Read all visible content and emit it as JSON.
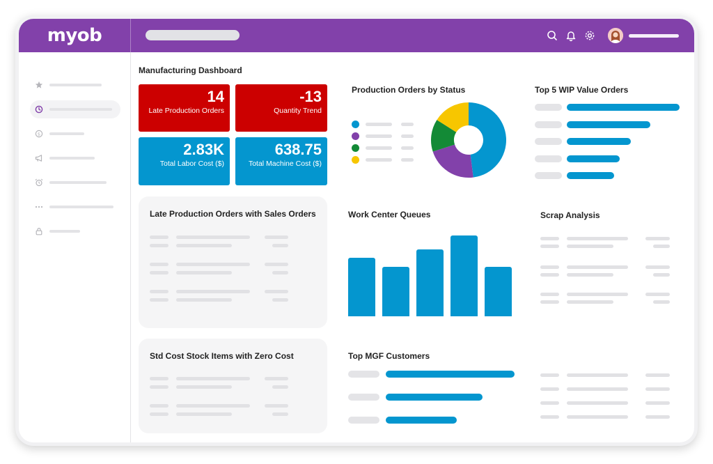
{
  "app": {
    "logo_text": "myob"
  },
  "topbar": {
    "icons": [
      "search-icon",
      "bell-icon",
      "gear-icon"
    ],
    "user": {
      "avatar": "user-avatar"
    }
  },
  "sidebar": {
    "items": [
      {
        "icon": "star-icon",
        "active": false
      },
      {
        "icon": "clock-icon",
        "active": true
      },
      {
        "icon": "dollar-icon",
        "active": false
      },
      {
        "icon": "megaphone-icon",
        "active": false
      },
      {
        "icon": "alarm-icon",
        "active": false
      },
      {
        "icon": "more-icon",
        "active": false
      },
      {
        "icon": "lock-icon",
        "active": false
      }
    ]
  },
  "dashboard": {
    "title": "Manufacturing Dashboard",
    "kpis": [
      {
        "value": "14",
        "label": "Late Production Orders",
        "color": "#cc0000"
      },
      {
        "value": "-13",
        "label": "Quantity Trend",
        "color": "#cc0000"
      },
      {
        "value": "2.83K",
        "label": "Total Labor Cost ($)",
        "color": "#0496cf"
      },
      {
        "value": "638.75",
        "label": "Total Machine Cost ($)",
        "color": "#0496cf"
      }
    ],
    "cards": {
      "orders_by_status": "Production Orders by Status",
      "top_wip": "Top 5 WIP Value Orders",
      "late_with_sales": "Late Production Orders with Sales Orders",
      "work_center_queues": "Work Center Queues",
      "scrap_analysis": "Scrap Analysis",
      "std_cost_zero": "Std Cost Stock Items with Zero Cost",
      "top_mgf_customers": "Top MGF Customers"
    }
  },
  "chart_data": [
    {
      "type": "pie",
      "values": [
        48,
        22,
        14,
        16
      ],
      "colors": [
        "#0496cf",
        "#8241aa",
        "#138a36",
        "#f7c600"
      ]
    },
    {
      "type": "bar",
      "values": [
        70,
        59,
        80,
        97,
        59
      ],
      "color": "#0496cf"
    },
    {
      "type": "bar",
      "values": [
        100,
        74,
        57,
        47,
        42
      ],
      "color": "#0496cf"
    },
    {
      "type": "bar",
      "values": [
        100,
        75,
        55
      ],
      "color": "#0496cf"
    }
  ],
  "colors": {
    "brand": "#8241aa",
    "accent_blue": "#0496cf",
    "alert_red": "#cc0000"
  }
}
